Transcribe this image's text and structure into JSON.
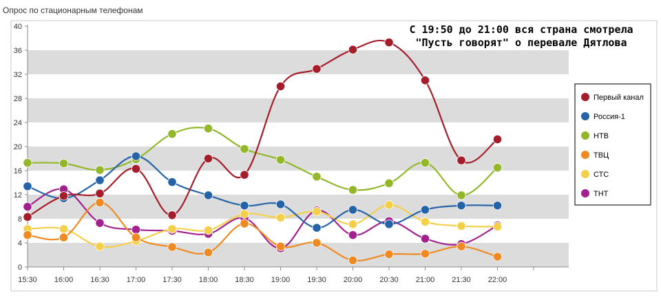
{
  "chart_data": {
    "type": "line",
    "title": "Опрос по стационарным телефонам",
    "annotation": [
      "С 19:50 до 21:00 вся страна смотрела",
      "\"Пусть говорят\" о перевале Дятлова"
    ],
    "categories": [
      "15:30",
      "16:00",
      "16:30",
      "17:00",
      "17:30",
      "18:00",
      "18:30",
      "19:00",
      "19:30",
      "20:00",
      "20:30",
      "21:00",
      "21:30",
      "22:00"
    ],
    "ylim": [
      0,
      40
    ],
    "yticks": [
      "0",
      "4",
      "8",
      "12",
      "16",
      "20",
      "24",
      "28",
      "32",
      "36",
      "40"
    ],
    "grid_bands": true,
    "legend_position": "right",
    "series": [
      {
        "name": "Первый канал",
        "color": "#a51c2a",
        "values": [
          8.3,
          11.8,
          12.2,
          16.3,
          8.6,
          18.0,
          15.3,
          30.0,
          32.9,
          36.1,
          37.3,
          31.0,
          17.7,
          21.2
        ]
      },
      {
        "name": "Россия-1",
        "color": "#2563a8",
        "values": [
          13.4,
          11.4,
          14.4,
          18.4,
          14.1,
          11.9,
          10.2,
          10.4,
          6.5,
          9.5,
          7.1,
          9.5,
          10.2,
          10.2
        ]
      },
      {
        "name": "НТВ",
        "color": "#92b82a",
        "values": [
          17.3,
          17.2,
          16.1,
          17.9,
          22.1,
          23.0,
          19.6,
          17.8,
          15.0,
          12.8,
          13.9,
          17.3,
          11.9,
          16.5
        ]
      },
      {
        "name": "ТВЦ",
        "color": "#ef8a22",
        "values": [
          5.3,
          4.9,
          10.7,
          4.9,
          3.3,
          2.4,
          7.2,
          3.4,
          4.0,
          1.1,
          2.1,
          2.2,
          3.4,
          1.7
        ]
      },
      {
        "name": "СТС",
        "color": "#f4d04a",
        "values": [
          6.3,
          6.3,
          3.4,
          4.3,
          6.3,
          6.1,
          8.8,
          8.2,
          9.2,
          7.1,
          10.3,
          7.5,
          6.8,
          6.7
        ]
      },
      {
        "name": "ТНТ",
        "color": "#a3218f",
        "values": [
          10.0,
          12.9,
          7.3,
          6.2,
          6.0,
          5.5,
          8.1,
          3.1,
          9.4,
          5.3,
          7.6,
          4.7,
          3.8,
          6.9
        ]
      }
    ]
  }
}
